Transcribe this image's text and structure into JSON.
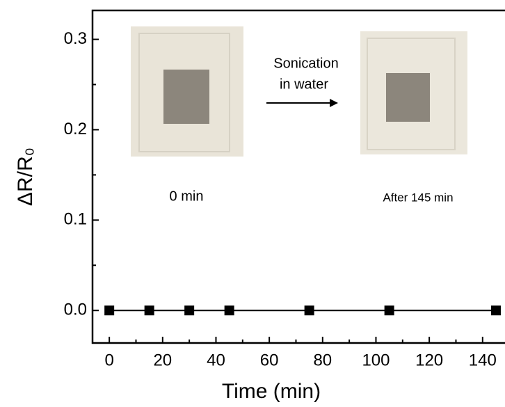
{
  "chart_data": {
    "type": "line",
    "xlabel": "Time (min)",
    "ylabel": "ΔR/R₀",
    "x": [
      0,
      15,
      30,
      45,
      75,
      105,
      145
    ],
    "series": [
      {
        "color": "#000000",
        "values": [
          0,
          0,
          0,
          0,
          0,
          0,
          0
        ]
      }
    ],
    "xlim": [
      -6.3,
      148.4
    ],
    "ylim": [
      -0.036,
      0.332
    ],
    "xticks": [
      0,
      20,
      40,
      60,
      80,
      100,
      120,
      140
    ],
    "yticks": [
      {
        "value": 0,
        "label": "0.0"
      },
      0.1,
      0.2,
      0.3
    ],
    "annotations": [
      "Sonication",
      "in water",
      "0 min",
      "After 145 min"
    ]
  }
}
